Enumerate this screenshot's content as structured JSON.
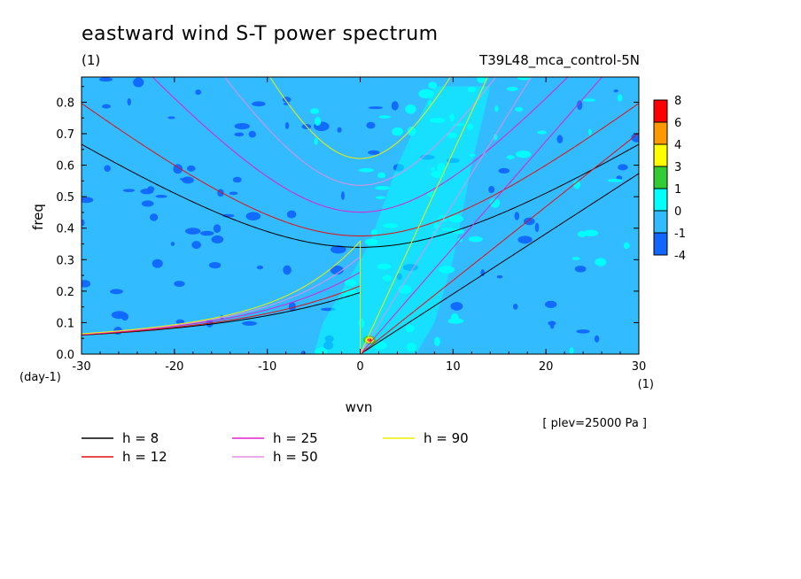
{
  "figure": {
    "title": "eastward wind S-T power spectrum",
    "title_unit": "(1)",
    "run_label": "T39L48_mca_control-5N",
    "footnote": "[ plev=25000 Pa ]"
  },
  "chart_data": {
    "type": "heatmap",
    "title": "eastward wind S-T power spectrum",
    "xlabel": "wvn",
    "xunit": "(1)",
    "ylabel": "freq",
    "yunit": "(day-1)",
    "xlim": [
      -30,
      30
    ],
    "ylim": [
      0,
      0.88
    ],
    "xticks": [
      -30,
      -20,
      -10,
      0,
      10,
      20,
      30
    ],
    "xtick_labels": [
      "-30",
      "-20",
      "-10",
      "0",
      "10",
      "20",
      "30"
    ],
    "yticks": [
      0,
      0.1,
      0.2,
      0.3,
      0.4,
      0.5,
      0.6,
      0.7,
      0.8
    ],
    "ytick_labels": [
      "0.0",
      "0.1",
      "0.2",
      "0.3",
      "0.4",
      "0.5",
      "0.6",
      "0.7",
      "0.8"
    ],
    "colorbar": {
      "levels": [
        "8",
        "6",
        "4",
        "3",
        "1",
        "0",
        "-1",
        "-4"
      ],
      "colors": [
        "#ff0000",
        "#ff9900",
        "#ffff00",
        "#33cc33",
        "#00ffff",
        "#33bbff",
        "#1166ff"
      ]
    },
    "field": {
      "background_color": "#33bbff",
      "low_color": "#1166ff",
      "high_color": "#00ffff",
      "peak": {
        "x": 1,
        "y": 0.045,
        "colors": [
          "#33cc33",
          "#ffff00",
          "#ff0000"
        ]
      }
    },
    "series": [
      {
        "name": "h =  8",
        "h": 8,
        "color": "#000000"
      },
      {
        "name": "h = 12",
        "h": 12,
        "color": "#e01010"
      },
      {
        "name": "h = 25",
        "h": 25,
        "color": "#dd22cc"
      },
      {
        "name": "h = 50",
        "h": 50,
        "color": "#e090e0"
      },
      {
        "name": "h = 90",
        "h": 90,
        "color": "#eeee00"
      }
    ],
    "curve_types": [
      "kelvin",
      "eastward_inertio_gravity_n1"
    ]
  }
}
